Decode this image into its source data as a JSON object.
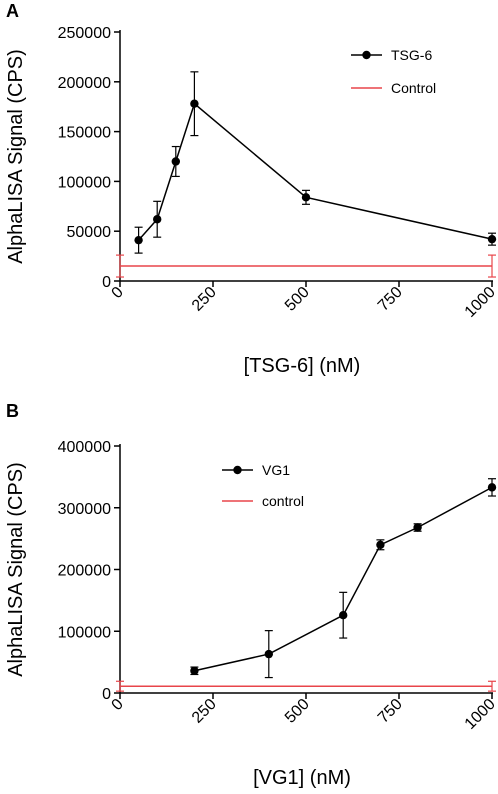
{
  "chart_data": [
    {
      "panel": "A",
      "type": "line",
      "xlabel": "[TSG-6] (nM)",
      "ylabel": "AlphaLISA Signal (CPS)",
      "xlim": [
        0,
        1000
      ],
      "ylim": [
        0,
        250000
      ],
      "xticks": [
        0,
        250,
        500,
        750,
        1000
      ],
      "yticks": [
        0,
        50000,
        100000,
        150000,
        200000,
        250000
      ],
      "legend_position": "top-right",
      "series": [
        {
          "name": "TSG-6",
          "color": "#000000",
          "marker": "circle",
          "x": [
            50,
            100,
            150,
            200,
            500,
            1000
          ],
          "y": [
            41000,
            62000,
            120000,
            178000,
            84000,
            42000
          ],
          "error": [
            13000,
            18000,
            15000,
            32000,
            7000,
            6000
          ]
        },
        {
          "name": "Control",
          "color": "#e8454a",
          "marker": "none",
          "x": [
            0,
            1000
          ],
          "y": [
            15000,
            15000
          ],
          "error": [
            11000,
            11000
          ]
        }
      ]
    },
    {
      "panel": "B",
      "type": "line",
      "xlabel": "[VG1] (nM)",
      "ylabel": "AlphaLISA Signal (CPS)",
      "xlim": [
        0,
        1000
      ],
      "ylim": [
        0,
        400000
      ],
      "xticks": [
        0,
        250,
        500,
        750,
        1000
      ],
      "yticks": [
        0,
        100000,
        200000,
        300000,
        400000
      ],
      "legend_position": "top-left",
      "series": [
        {
          "name": "VG1",
          "color": "#000000",
          "marker": "circle",
          "x": [
            200,
            400,
            600,
            700,
            800,
            1000
          ],
          "y": [
            36000,
            63000,
            126000,
            240000,
            268000,
            333000
          ],
          "error": [
            6000,
            38000,
            37000,
            8000,
            6000,
            14000
          ]
        },
        {
          "name": "control",
          "color": "#e8454a",
          "marker": "none",
          "x": [
            0,
            1000
          ],
          "y": [
            11000,
            11000
          ],
          "error": [
            8000,
            8000
          ]
        }
      ]
    }
  ]
}
